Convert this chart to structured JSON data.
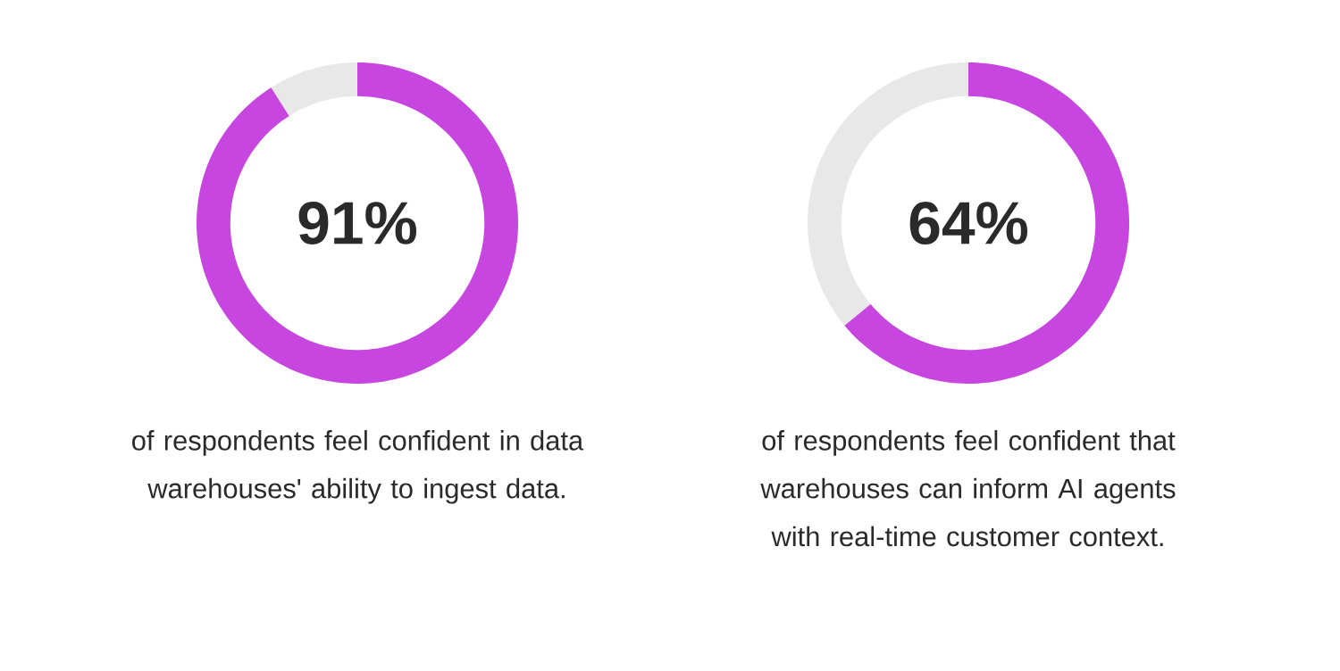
{
  "chart_data": [
    {
      "type": "donut",
      "categories": [
        null,
        null
      ],
      "values": [
        91,
        9
      ],
      "colors": [
        "#c846e0",
        "#e8e8e8"
      ],
      "value_labels": [
        "91%",
        null
      ],
      "annotations": [
        "of respondents feel confident in data warehouses' ability to ingest data."
      ]
    },
    {
      "type": "donut",
      "categories": [
        null,
        null
      ],
      "values": [
        64,
        36
      ],
      "colors": [
        "#c846e0",
        "#e8e8e8"
      ],
      "value_labels": [
        "64%",
        null
      ],
      "annotations": [
        "of respondents feel confident that warehouses can inform AI agents with real-time customer context."
      ]
    }
  ]
}
